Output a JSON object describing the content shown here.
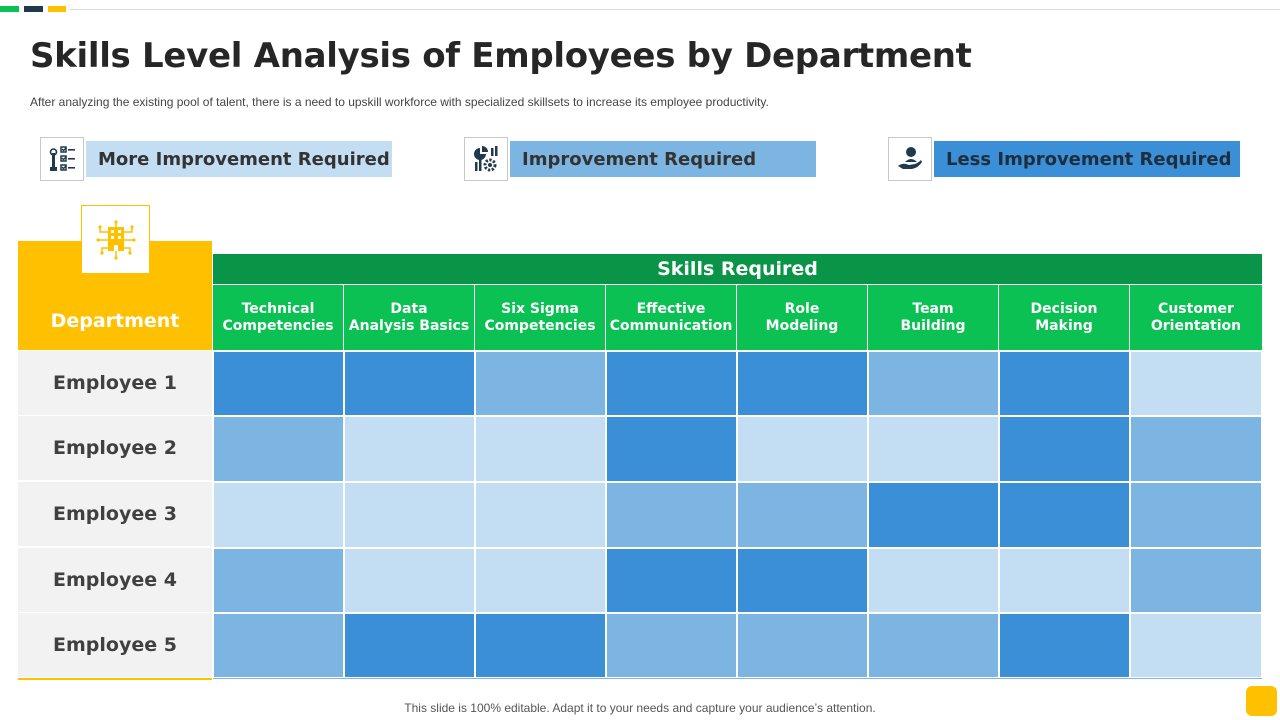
{
  "colors": {
    "accent_green": "#0cc154",
    "accent_navy": "#1f3a4f",
    "accent_yellow": "#ffc000",
    "header_green": "#0a9447",
    "level_less": "#3a8fd6",
    "level_mid": "#7db5e2",
    "level_more": "#c3ddf2"
  },
  "title": "Skills Level Analysis of Employees by Department",
  "subtitle": "After analyzing the existing pool of talent, there is a need to upskill workforce  with specialized skillsets to increase its employee productivity.",
  "legend": [
    {
      "label": "More Improvement Required",
      "icon": "checklist-wrench-icon",
      "level": "more"
    },
    {
      "label": "Improvement Required",
      "icon": "chart-gear-icon",
      "level": "mid"
    },
    {
      "label": "Less Improvement Required",
      "icon": "person-hand-icon",
      "level": "less"
    }
  ],
  "table": {
    "department_header": "Department",
    "department_icon": "building-icon",
    "skills_header": "Skills Required",
    "skills": [
      "Technical\nCompetencies",
      "Data\nAnalysis Basics",
      "Six Sigma\nCompetencies",
      "Effective\nCommunication",
      "Role\nModeling",
      "Team\nBuilding",
      "Decision\nMaking",
      "Customer\nOrientation"
    ],
    "rows": [
      {
        "employee": "Employee 1",
        "levels": [
          "less",
          "less",
          "mid",
          "less",
          "less",
          "mid",
          "less",
          "more"
        ]
      },
      {
        "employee": "Employee 2",
        "levels": [
          "mid",
          "more",
          "more",
          "less",
          "more",
          "more",
          "less",
          "mid"
        ]
      },
      {
        "employee": "Employee 3",
        "levels": [
          "more",
          "more",
          "more",
          "mid",
          "mid",
          "less",
          "less",
          "mid"
        ]
      },
      {
        "employee": "Employee 4",
        "levels": [
          "mid",
          "more",
          "more",
          "less",
          "less",
          "more",
          "more",
          "mid"
        ]
      },
      {
        "employee": "Employee 5",
        "levels": [
          "mid",
          "less",
          "less",
          "mid",
          "mid",
          "mid",
          "less",
          "more"
        ]
      }
    ]
  },
  "footer": "This slide is 100% editable. Adapt it to your needs and capture your audience’s attention."
}
